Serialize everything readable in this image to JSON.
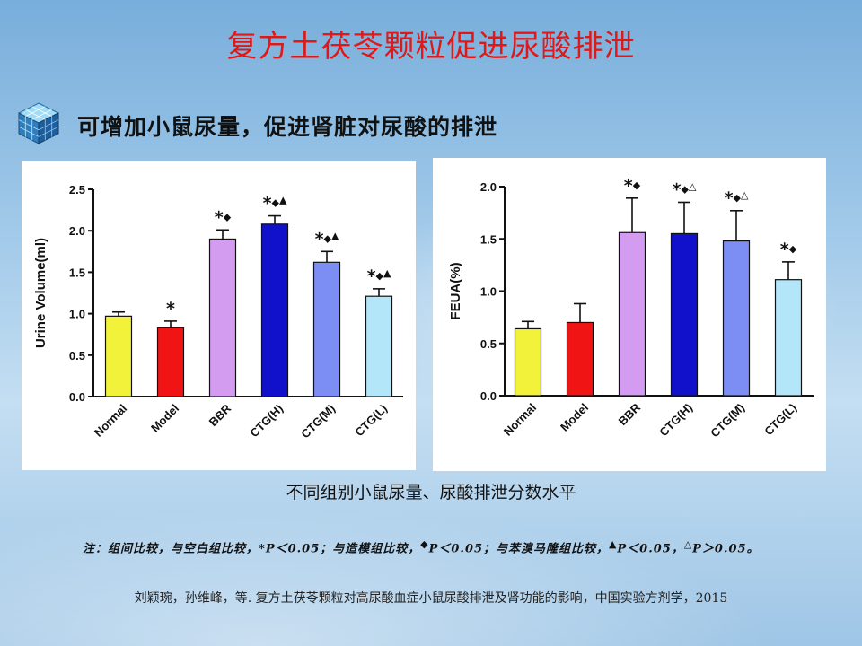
{
  "slide": {
    "title": "复方土茯苓颗粒促进尿酸排泄",
    "subtitle": "可增加小鼠尿量，促进肾脏对尿酸的排泄",
    "caption": "不同组别小鼠尿量、尿酸排泄分数水平",
    "note": {
      "prefix": "注：组间比较，与空白组比较，",
      "p1": "*P＜0.05；与造模组比较，",
      "diamond": "◆",
      "p2": "P＜0.05；与苯溴马隆组比较，",
      "triangle": "▲",
      "p3": "P＜0.05，",
      "delta": "△",
      "p4": "P＞0.05。"
    },
    "citation": "刘颖琬，孙维峰，等. 复方土茯苓颗粒对高尿酸血症小鼠尿酸排泄及肾功能的影响，中国实验方剂学，2015"
  },
  "colors": {
    "Normal": "#f2f23a",
    "Model": "#f01414",
    "BBR": "#d49cf0",
    "CTG(H)": "#1111cc",
    "CTG(M)": "#7c8ef4",
    "CTG(L)": "#b4e6fa"
  },
  "chart_data": [
    {
      "type": "bar",
      "title": "",
      "xlabel": "",
      "ylabel": "Urine Volume(ml)",
      "ylim": [
        0,
        2.5
      ],
      "yticks": [
        "0.0",
        "0.5",
        "1.0",
        "1.5",
        "2.0",
        "2.5"
      ],
      "categories": [
        "Normal",
        "Model",
        "BBR",
        "CTG(H)",
        "CTG(M)",
        "CTG(L)"
      ],
      "values": [
        0.97,
        0.83,
        1.9,
        2.08,
        1.62,
        1.21
      ],
      "errors": [
        0.05,
        0.08,
        0.11,
        0.1,
        0.13,
        0.09
      ],
      "significance": [
        "",
        "*",
        "*◆",
        "*◆▲",
        "*◆▲",
        "*◆▲"
      ]
    },
    {
      "type": "bar",
      "title": "",
      "xlabel": "",
      "ylabel": "FEUA(%)",
      "ylim": [
        0,
        2.0
      ],
      "yticks": [
        "0.0",
        "0.5",
        "1.0",
        "1.5",
        "2.0"
      ],
      "categories": [
        "Normal",
        "Model",
        "BBR",
        "CTG(H)",
        "CTG(M)",
        "CTG(L)"
      ],
      "values": [
        0.64,
        0.7,
        1.56,
        1.55,
        1.48,
        1.11
      ],
      "errors": [
        0.07,
        0.18,
        0.33,
        0.3,
        0.29,
        0.17
      ],
      "significance": [
        "",
        "",
        "*◆",
        "*◆△",
        "*◆△",
        "*◆"
      ]
    }
  ]
}
